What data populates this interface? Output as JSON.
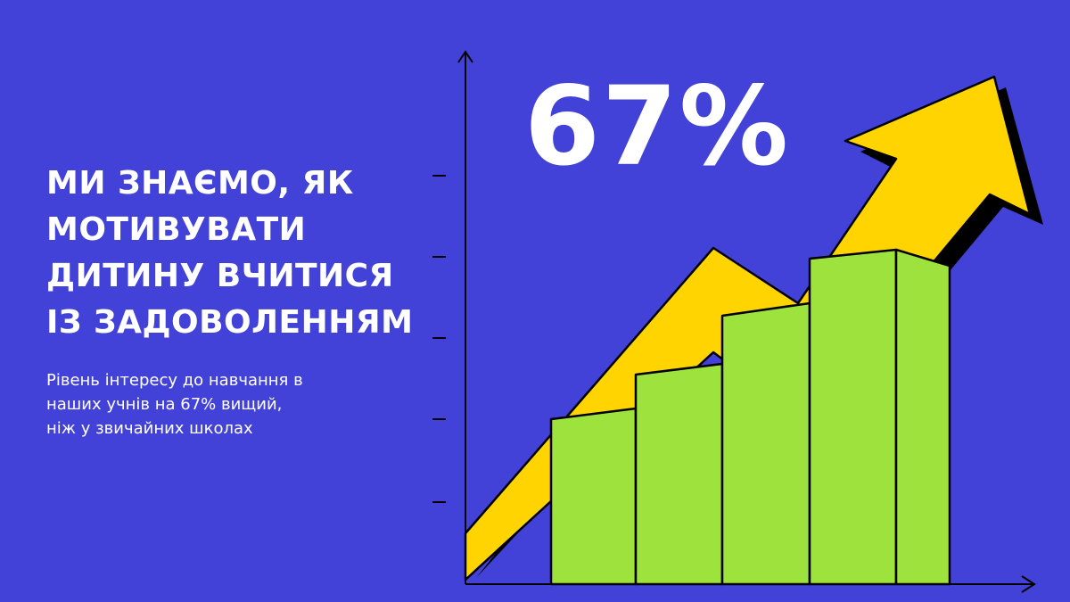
{
  "headline": {
    "lines": [
      "МИ ЗНАЄМО, ЯК",
      "МОТИВУВАТИ",
      "ДИТИНУ ВЧИТИСЯ",
      "ІЗ ЗАДОВОЛЕННЯМ"
    ]
  },
  "subtext": {
    "lines": [
      "Рівень інтересу до навчання в",
      "наших учнів на 67% вищий,",
      "ніж у звичайних школах"
    ]
  },
  "stat": {
    "value": "67%"
  },
  "colors": {
    "background": "#4242d8",
    "arrow": "#ffd400",
    "bars": "#9ee33d",
    "outline": "#000000",
    "text": "#ffffff"
  },
  "illustration": {
    "bar_count": 5,
    "icons": [
      "growth-arrow-icon",
      "axis-icon"
    ]
  }
}
